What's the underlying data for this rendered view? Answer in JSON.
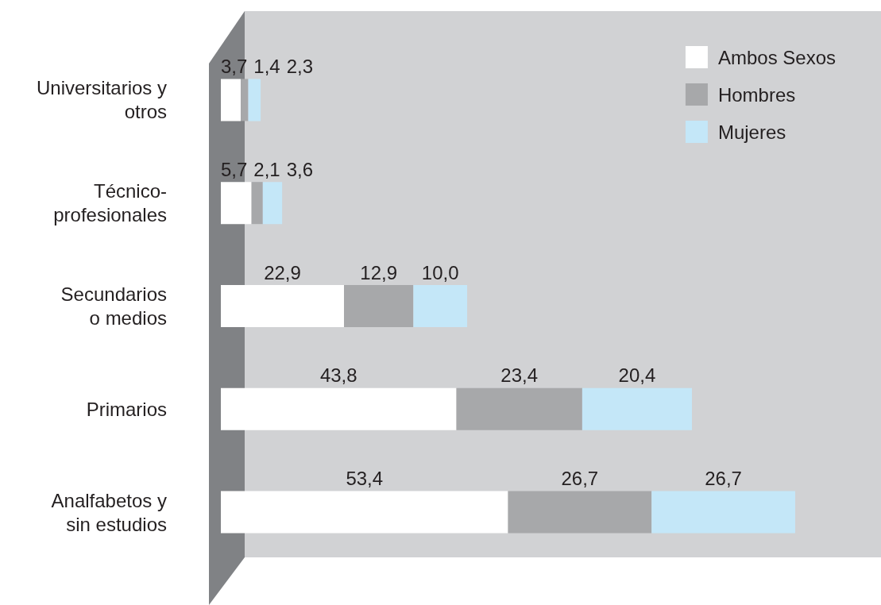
{
  "chart_data": {
    "type": "bar",
    "orientation": "horizontal",
    "stacked": true,
    "legend": "top right",
    "categories": [
      "Universitarios y\notros",
      "Técnico-\nprofesionales",
      "Secundarios\no medios",
      "Primarios",
      "Analfabetos y\nsin estudios"
    ],
    "series": [
      {
        "name": "Ambos Sexos",
        "color": "#ffffff",
        "values": [
          3.7,
          5.7,
          22.9,
          43.8,
          53.4
        ],
        "value_labels": [
          "3,7",
          "5,7",
          "22,9",
          "43,8",
          "53,4"
        ]
      },
      {
        "name": "Hombres",
        "color": "#a7a8aa",
        "values": [
          1.4,
          2.1,
          12.9,
          23.4,
          26.7
        ],
        "value_labels": [
          "1,4",
          "2,1",
          "12,9",
          "23,4",
          "26,7"
        ]
      },
      {
        "name": "Mujeres",
        "color": "#c4e7f8",
        "values": [
          2.3,
          3.6,
          10.0,
          20.4,
          26.7
        ],
        "value_labels": [
          "2,3",
          "3,6",
          "10,0",
          "20,4",
          "26,7"
        ]
      }
    ]
  }
}
